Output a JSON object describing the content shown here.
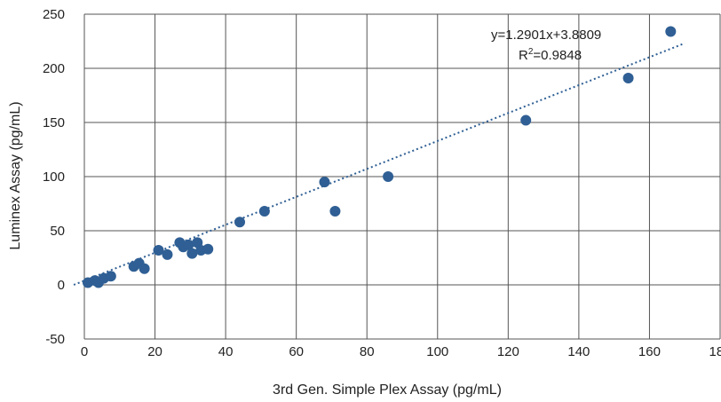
{
  "chart_data": {
    "type": "scatter",
    "title": "",
    "xlabel": "3rd Gen. Simple Plex Assay (pg/mL)",
    "ylabel": "Luminex Assay (pg/mL)",
    "xlim": [
      0,
      180
    ],
    "ylim": [
      -50,
      250
    ],
    "x_ticks": [
      0,
      20,
      40,
      60,
      80,
      100,
      120,
      140,
      160,
      180
    ],
    "y_ticks": [
      -50,
      0,
      50,
      100,
      150,
      200,
      250
    ],
    "grid": true,
    "marker_color": "#2f5f94",
    "trendline_color": "#2f5f94",
    "points": [
      {
        "x": 1,
        "y": 2
      },
      {
        "x": 3,
        "y": 4
      },
      {
        "x": 4,
        "y": 2
      },
      {
        "x": 5.5,
        "y": 6
      },
      {
        "x": 7.5,
        "y": 8
      },
      {
        "x": 14,
        "y": 17
      },
      {
        "x": 15.5,
        "y": 20
      },
      {
        "x": 17,
        "y": 15
      },
      {
        "x": 21,
        "y": 32
      },
      {
        "x": 23.5,
        "y": 28
      },
      {
        "x": 27,
        "y": 39
      },
      {
        "x": 28,
        "y": 35
      },
      {
        "x": 29.5,
        "y": 37
      },
      {
        "x": 30.5,
        "y": 29
      },
      {
        "x": 32,
        "y": 39
      },
      {
        "x": 33,
        "y": 32
      },
      {
        "x": 35,
        "y": 33
      },
      {
        "x": 44,
        "y": 58
      },
      {
        "x": 51,
        "y": 68
      },
      {
        "x": 68,
        "y": 95
      },
      {
        "x": 71,
        "y": 68
      },
      {
        "x": 86,
        "y": 100
      },
      {
        "x": 125,
        "y": 152
      },
      {
        "x": 154,
        "y": 191
      },
      {
        "x": 166,
        "y": 234
      }
    ],
    "trendline": {
      "slope": 1.2901,
      "intercept": 3.8809,
      "x_start": -3,
      "x_end": 170,
      "equation": "y=1.2901x+3.8809",
      "r2_prefix": "R",
      "r2_sup": "2",
      "r2_value": "=0.9848"
    }
  }
}
